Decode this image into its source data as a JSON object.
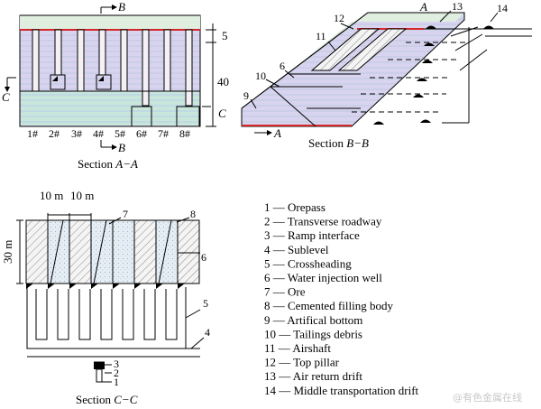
{
  "section_aa": {
    "caption_prefix": "Section ",
    "caption_var": "A−A",
    "cut_b_top": "B",
    "cut_b_bottom": "B",
    "cut_c_left": "C",
    "cut_c_right": "C",
    "dim_top": "5",
    "dim_height": "40",
    "stopes": [
      "1#",
      "2#",
      "3#",
      "4#",
      "5#",
      "6#",
      "7#",
      "8#"
    ]
  },
  "section_bb": {
    "caption_prefix": "Section ",
    "caption_var": "B−B",
    "cut_a_top": "A",
    "cut_a_bottom": "A",
    "callouts": [
      "12",
      "13",
      "14",
      "11",
      "10",
      "6",
      "9"
    ]
  },
  "section_cc": {
    "caption_prefix": "Section ",
    "caption_var": "C−C",
    "dim_width_1": "10 m",
    "dim_width_2": "10 m",
    "dim_height": "30 m",
    "callouts": [
      "7",
      "8",
      "6",
      "5",
      "4",
      "3",
      "2",
      "1"
    ]
  },
  "legend": [
    {
      "num": "1",
      "sep": " — ",
      "text": "Orepass"
    },
    {
      "num": "2",
      "sep": " — ",
      "text": "Transverse roadway"
    },
    {
      "num": "3",
      "sep": " — ",
      "text": "Ramp interface"
    },
    {
      "num": "4",
      "sep": " — ",
      "text": "Sublevel"
    },
    {
      "num": "5",
      "sep": " — ",
      "text": "Crossheading"
    },
    {
      "num": "6",
      "sep": " — ",
      "text": "Water injection well"
    },
    {
      "num": "7",
      "sep": " — ",
      "text": "Ore"
    },
    {
      "num": "8",
      "sep": " — ",
      "text": "Cemented filling body"
    },
    {
      "num": "9",
      "sep": " — ",
      "text": "Artifical bottom"
    },
    {
      "num": "10",
      "sep": " — ",
      "text": "Tailings debris"
    },
    {
      "num": "11",
      "sep": " — ",
      "text": "Airshaft"
    },
    {
      "num": "12",
      "sep": " — ",
      "text": "Top pillar"
    },
    {
      "num": "13",
      "sep": " — ",
      "text": "Air return drift"
    },
    {
      "num": "14",
      "sep": " — ",
      "text": "Middle transportation drift"
    }
  ],
  "watermark": "@有色金属在线",
  "colors": {
    "ore_fill": "#d4d6ee",
    "pillar_fill": "#f2eef2",
    "ore_lower": "#c6e4dd",
    "red_line": "#d2282a",
    "hatch_line": "#8a8a8a"
  }
}
